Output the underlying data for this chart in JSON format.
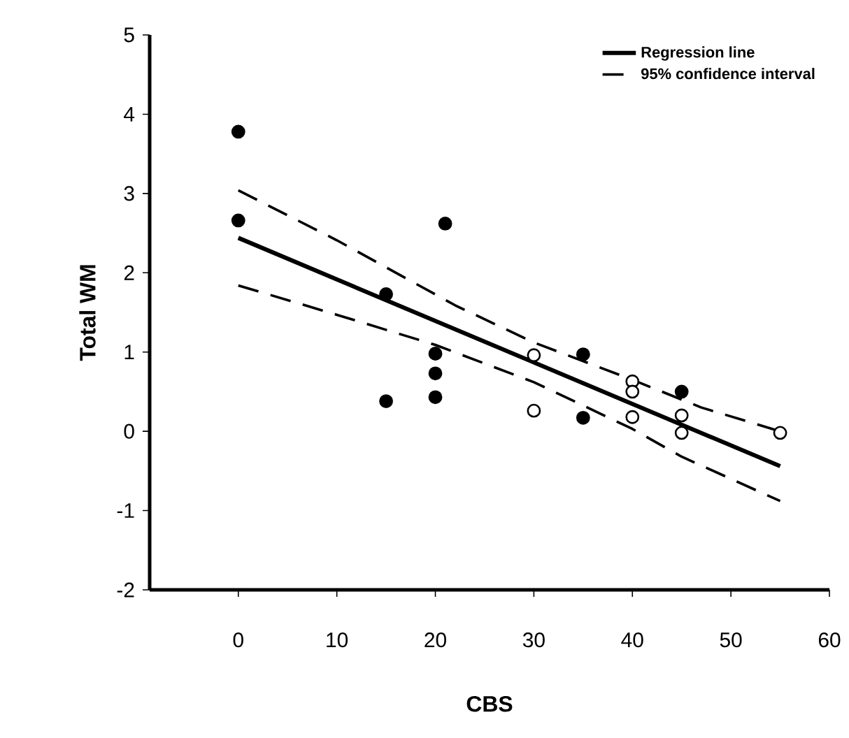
{
  "chart_data": {
    "type": "scatter",
    "xlabel": "CBS",
    "ylabel": "Total WM",
    "xlim": [
      -9,
      60
    ],
    "xticks": [
      0,
      10,
      20,
      30,
      40,
      50,
      60
    ],
    "ylim": [
      -2,
      5
    ],
    "yticks": [
      -2,
      -1,
      0,
      1,
      2,
      3,
      4,
      5
    ],
    "legend": "top right",
    "grid": false,
    "series": [
      {
        "color": "#000000",
        "marker": "circle",
        "x": [
          0,
          0,
          21,
          15,
          20,
          20,
          20,
          15,
          35,
          35,
          45
        ],
        "values": [
          3.78,
          2.66,
          2.62,
          1.73,
          0.98,
          0.73,
          0.43,
          0.38,
          0.97,
          0.17,
          0.5
        ]
      },
      {
        "color": "#ffffff",
        "marker": "circle",
        "x": [
          30,
          30,
          40,
          40,
          40,
          45,
          45,
          55
        ],
        "values": [
          0.96,
          0.26,
          0.63,
          0.5,
          0.18,
          0.2,
          -0.02,
          -0.02
        ]
      },
      {
        "type": "line",
        "name": "Regression line",
        "color": "#000000",
        "marker": "none",
        "line_style": "solid",
        "x": [
          0,
          55
        ],
        "values": [
          2.44,
          -0.44
        ]
      },
      {
        "type": "line",
        "name": "95% confidence interval",
        "color": "#000000",
        "marker": "none",
        "line_style": "dashed",
        "x": [
          0,
          10,
          22,
          30,
          40,
          47,
          55
        ],
        "values": [
          3.04,
          2.41,
          1.59,
          1.12,
          0.65,
          0.3,
          0.0
        ]
      },
      {
        "type": "line",
        "color": "#000000",
        "marker": "none",
        "line_style": "dashed",
        "x": [
          0,
          10,
          20,
          30,
          40,
          45,
          55
        ],
        "values": [
          1.84,
          1.47,
          1.09,
          0.62,
          0.03,
          -0.32,
          -0.88
        ]
      }
    ]
  }
}
